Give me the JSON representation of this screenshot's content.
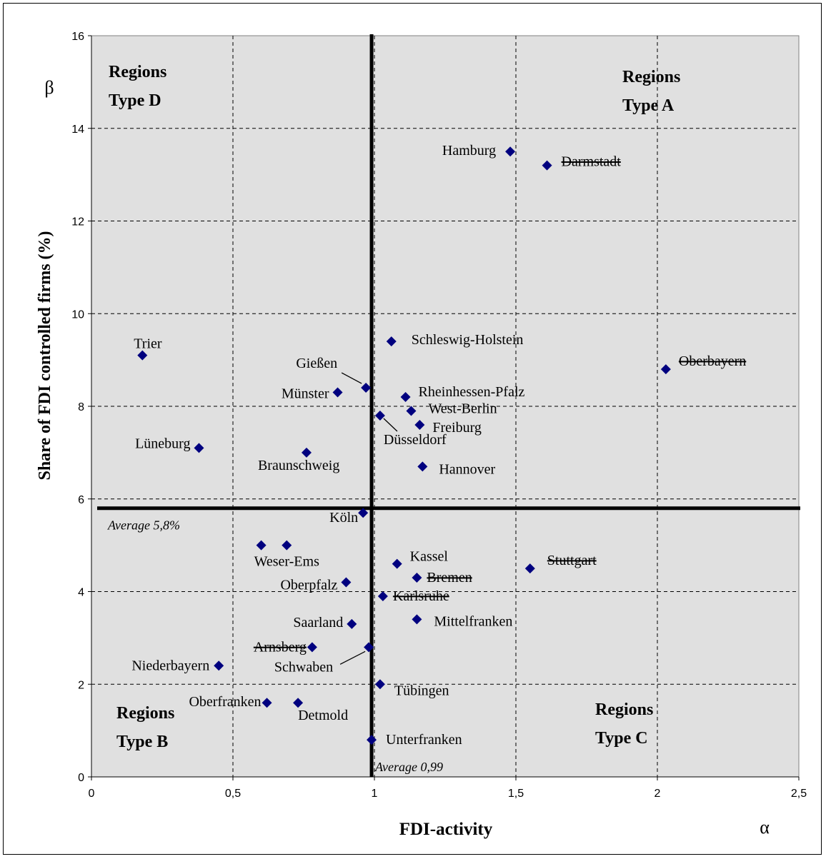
{
  "chart_data": {
    "type": "scatter",
    "xlabel": "FDI-activity",
    "ylabel": "Share of FDI controlled firms (%)",
    "x_symbol": "α",
    "y_symbol": "β",
    "xlim": [
      0,
      2.5
    ],
    "ylim": [
      0,
      16
    ],
    "xticks": [
      "0",
      "0,5",
      "1",
      "1,5",
      "2",
      "2,5"
    ],
    "yticks": [
      "0",
      "2",
      "4",
      "6",
      "8",
      "10",
      "12",
      "14",
      "16"
    ],
    "grid": true,
    "background": "#e0e0e0",
    "marker_color": "#00007f",
    "average_x": {
      "value": 0.99,
      "label": "Average 0,99"
    },
    "average_y": {
      "value": 5.8,
      "label": "Average 5,8%"
    },
    "quadrants": [
      {
        "line1": "Regions",
        "line2": "Type D"
      },
      {
        "line1": "Regions",
        "line2": "Type A"
      },
      {
        "line1": "Regions",
        "line2": "Type B"
      },
      {
        "line1": "Regions",
        "line2": "Type C"
      }
    ],
    "points": [
      {
        "name": "Hamburg",
        "x": 1.48,
        "y": 13.5,
        "struck": false
      },
      {
        "name": "Darmstadt",
        "x": 1.61,
        "y": 13.2,
        "struck": true
      },
      {
        "name": "Trier",
        "x": 0.18,
        "y": 9.1,
        "struck": false
      },
      {
        "name": "Schleswig-Holstein",
        "x": 1.06,
        "y": 9.4,
        "struck": false
      },
      {
        "name": "Oberbayern",
        "x": 2.03,
        "y": 8.8,
        "struck": true
      },
      {
        "name": "Gießen",
        "x": 0.97,
        "y": 8.4,
        "struck": false
      },
      {
        "name": "Münster",
        "x": 0.87,
        "y": 8.3,
        "struck": false
      },
      {
        "name": "Rheinhessen-Pfalz",
        "x": 1.11,
        "y": 8.2,
        "struck": false
      },
      {
        "name": "West-Berlin",
        "x": 1.13,
        "y": 7.9,
        "struck": false
      },
      {
        "name": "Freiburg",
        "x": 1.16,
        "y": 7.6,
        "struck": false
      },
      {
        "name": "Düsseldorf",
        "x": 1.02,
        "y": 7.8,
        "struck": false
      },
      {
        "name": "Lüneburg",
        "x": 0.38,
        "y": 7.1,
        "struck": false
      },
      {
        "name": "Braunschweig",
        "x": 0.76,
        "y": 7.0,
        "struck": false
      },
      {
        "name": "Hannover",
        "x": 1.17,
        "y": 6.7,
        "struck": false
      },
      {
        "name": "Köln",
        "x": 0.96,
        "y": 5.7,
        "struck": false
      },
      {
        "name": "",
        "x": 0.6,
        "y": 5.0,
        "struck": false
      },
      {
        "name": "Weser-Ems",
        "x": 0.69,
        "y": 5.0,
        "struck": false
      },
      {
        "name": "Kassel",
        "x": 1.08,
        "y": 4.6,
        "struck": false
      },
      {
        "name": "Stuttgart",
        "x": 1.55,
        "y": 4.5,
        "struck": true
      },
      {
        "name": "Bremen",
        "x": 1.15,
        "y": 4.3,
        "struck": true
      },
      {
        "name": "Oberpfalz",
        "x": 0.9,
        "y": 4.2,
        "struck": false
      },
      {
        "name": "Karlsruhe",
        "x": 1.03,
        "y": 3.9,
        "struck": true
      },
      {
        "name": "Mittelfranken",
        "x": 1.15,
        "y": 3.4,
        "struck": false
      },
      {
        "name": "Saarland",
        "x": 0.92,
        "y": 3.3,
        "struck": false
      },
      {
        "name": "Arnsberg",
        "x": 0.78,
        "y": 2.8,
        "struck": true
      },
      {
        "name": "Schwaben",
        "x": 0.98,
        "y": 2.8,
        "struck": false
      },
      {
        "name": "Niederbayern",
        "x": 0.45,
        "y": 2.4,
        "struck": false
      },
      {
        "name": "Tübingen",
        "x": 1.02,
        "y": 2.0,
        "struck": false
      },
      {
        "name": "Oberfranken",
        "x": 0.62,
        "y": 1.6,
        "struck": false
      },
      {
        "name": "Detmold",
        "x": 0.73,
        "y": 1.6,
        "struck": false
      },
      {
        "name": "Unterfranken",
        "x": 0.99,
        "y": 0.8,
        "struck": false
      }
    ]
  }
}
